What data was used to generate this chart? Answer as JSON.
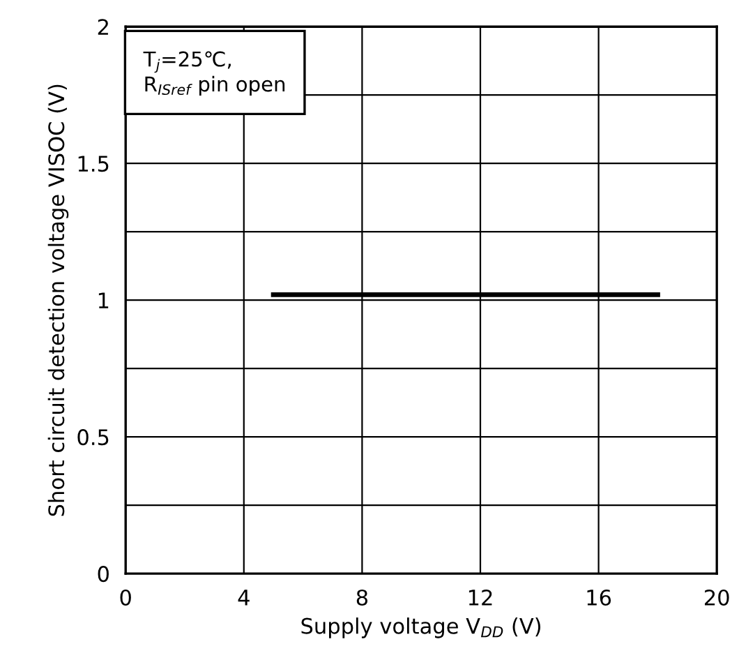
{
  "chart_data": {
    "type": "line",
    "xlabel": "Supply voltage V$_{DD}$ (V)",
    "ylabel": "Short circuit detection voltage VISOC (V)",
    "x": [
      5,
      18
    ],
    "series": [
      {
        "color": "#000000",
        "values": [
          1.02,
          1.02
        ]
      }
    ],
    "xlim": [
      0,
      20
    ],
    "xticks": [
      0,
      4,
      8,
      12,
      16,
      20
    ],
    "ylim": [
      0,
      2
    ],
    "yticks": [
      0,
      {
        "value": 0.25,
        "label": null
      },
      0.5,
      {
        "value": 0.75,
        "label": null
      },
      1,
      {
        "value": 1.25,
        "label": null
      },
      1.5,
      {
        "value": 1.75,
        "label": null
      },
      2
    ],
    "grid": true,
    "marker": "none",
    "line_style": "solid",
    "annotations": [
      "T$_{j}$=25℃,\nR$_{ISref}$ pin open"
    ]
  }
}
